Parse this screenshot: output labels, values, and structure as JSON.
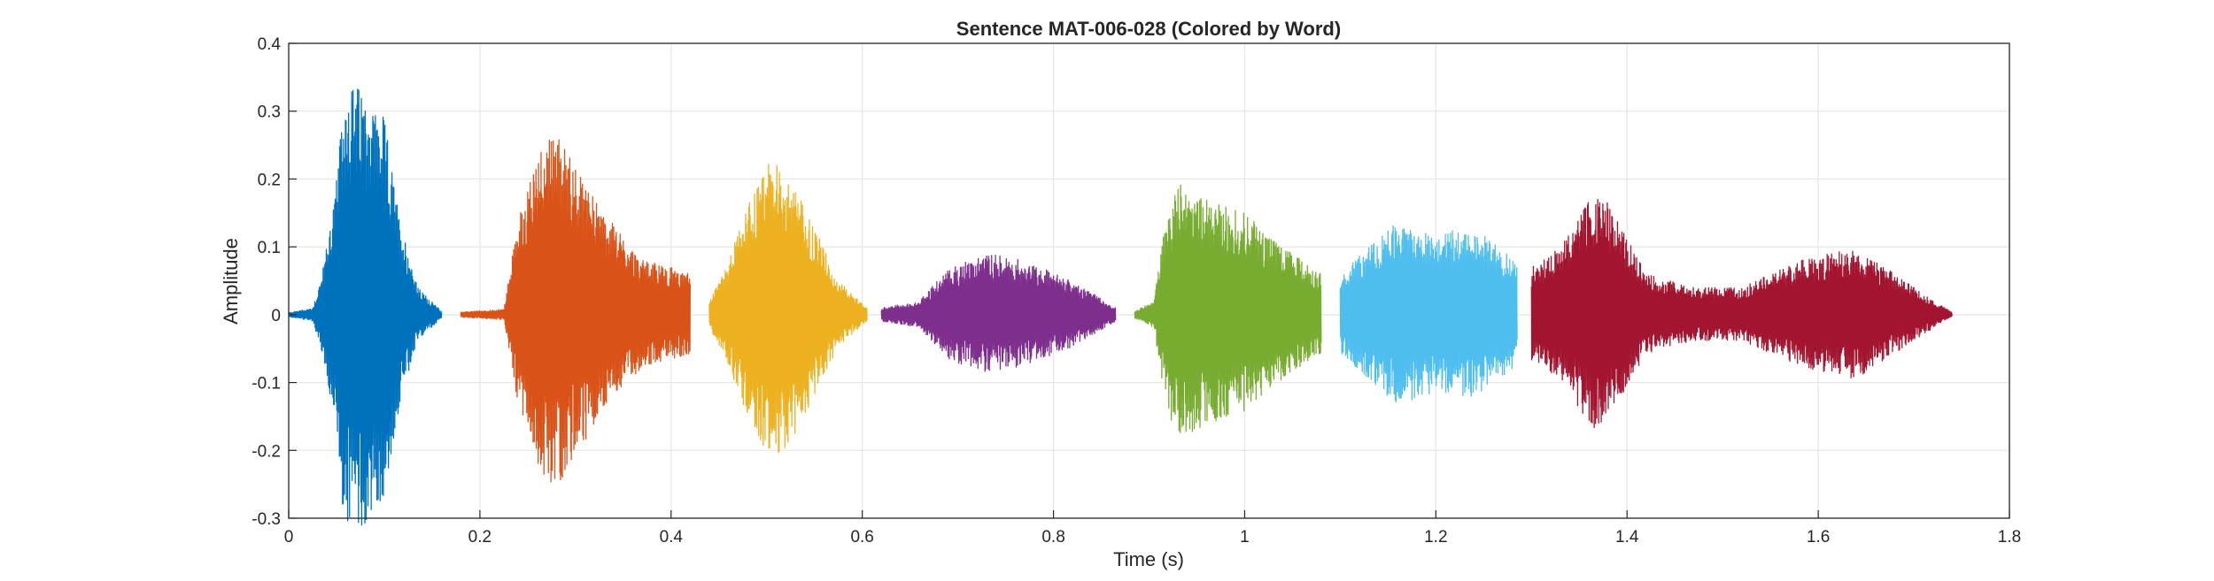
{
  "chart_data": {
    "type": "line",
    "title": "Sentence MAT-006-028 (Colored by Word)",
    "xlabel": "Time (s)",
    "ylabel": "Amplitude",
    "xlim": [
      0,
      1.8
    ],
    "ylim": [
      -0.3,
      0.4
    ],
    "xticks": [
      0,
      0.2,
      0.4,
      0.6,
      0.8,
      1,
      1.2,
      1.4,
      1.6,
      1.8
    ],
    "xtick_labels": [
      "0",
      "0.2",
      "0.4",
      "0.6",
      "0.8",
      "1",
      "1.2",
      "1.4",
      "1.6",
      "1.8"
    ],
    "yticks": [
      -0.3,
      -0.2,
      -0.1,
      0,
      0.1,
      0.2,
      0.3,
      0.4
    ],
    "ytick_labels": [
      "-0.3",
      "-0.2",
      "-0.1",
      "0",
      "0.1",
      "0.2",
      "0.3",
      "0.4"
    ],
    "grid": true,
    "series": [
      {
        "color": "#0072BD",
        "start": 0.0,
        "end": 0.16,
        "envelope": [
          [
            0.0,
            0.003
          ],
          [
            0.025,
            0.01
          ],
          [
            0.035,
            0.06
          ],
          [
            0.05,
            0.2
          ],
          [
            0.06,
            0.35
          ],
          [
            0.08,
            0.33
          ],
          [
            0.1,
            0.29
          ],
          [
            0.115,
            0.15
          ],
          [
            0.135,
            0.04
          ],
          [
            0.16,
            0.005
          ]
        ]
      },
      {
        "color": "#D95319",
        "start": 0.18,
        "end": 0.42,
        "envelope": [
          [
            0.18,
            0.004
          ],
          [
            0.225,
            0.008
          ],
          [
            0.24,
            0.14
          ],
          [
            0.26,
            0.24
          ],
          [
            0.275,
            0.28
          ],
          [
            0.3,
            0.22
          ],
          [
            0.33,
            0.15
          ],
          [
            0.37,
            0.08
          ],
          [
            0.4,
            0.07
          ],
          [
            0.42,
            0.06
          ]
        ]
      },
      {
        "color": "#EDB120",
        "start": 0.44,
        "end": 0.605,
        "envelope": [
          [
            0.44,
            0.02
          ],
          [
            0.455,
            0.06
          ],
          [
            0.48,
            0.16
          ],
          [
            0.505,
            0.23
          ],
          [
            0.525,
            0.2
          ],
          [
            0.55,
            0.13
          ],
          [
            0.575,
            0.05
          ],
          [
            0.605,
            0.01
          ]
        ]
      },
      {
        "color": "#7E2F8E",
        "start": 0.62,
        "end": 0.865,
        "envelope": [
          [
            0.62,
            0.01
          ],
          [
            0.66,
            0.02
          ],
          [
            0.69,
            0.07
          ],
          [
            0.73,
            0.09
          ],
          [
            0.77,
            0.08
          ],
          [
            0.82,
            0.05
          ],
          [
            0.865,
            0.01
          ]
        ]
      },
      {
        "color": "#77AC30",
        "start": 0.885,
        "end": 1.08,
        "envelope": [
          [
            0.885,
            0.005
          ],
          [
            0.905,
            0.02
          ],
          [
            0.915,
            0.12
          ],
          [
            0.93,
            0.2
          ],
          [
            0.96,
            0.17
          ],
          [
            1.0,
            0.15
          ],
          [
            1.04,
            0.1
          ],
          [
            1.08,
            0.06
          ]
        ]
      },
      {
        "color": "#4DBEEE",
        "start": 1.1,
        "end": 1.285,
        "envelope": [
          [
            1.1,
            0.06
          ],
          [
            1.13,
            0.1
          ],
          [
            1.16,
            0.14
          ],
          [
            1.2,
            0.12
          ],
          [
            1.24,
            0.13
          ],
          [
            1.265,
            0.1
          ],
          [
            1.285,
            0.08
          ]
        ]
      },
      {
        "color": "#A2142F",
        "start": 1.3,
        "end": 1.74,
        "envelope": [
          [
            1.3,
            0.07
          ],
          [
            1.33,
            0.1
          ],
          [
            1.37,
            0.19
          ],
          [
            1.42,
            0.06
          ],
          [
            1.47,
            0.04
          ],
          [
            1.52,
            0.04
          ],
          [
            1.58,
            0.08
          ],
          [
            1.64,
            0.1
          ],
          [
            1.7,
            0.04
          ],
          [
            1.74,
            0.003
          ]
        ]
      }
    ]
  }
}
